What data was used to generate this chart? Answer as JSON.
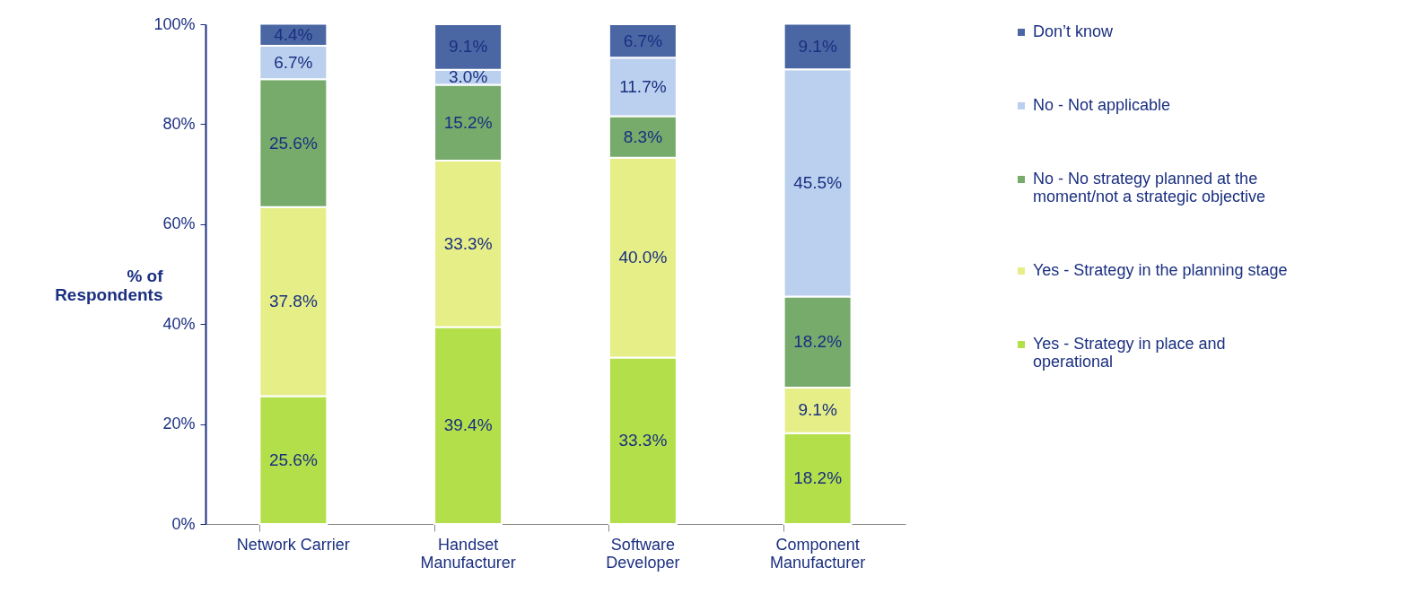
{
  "chart_data": {
    "type": "bar",
    "stacked": true,
    "ylabel": "% of Respondents",
    "categories": [
      "Network Carrier",
      "Handset Manufacturer",
      "Software Developer",
      "Component Manufacturer"
    ],
    "ylim": [
      0,
      100
    ],
    "yticks": [
      {
        "value": 0,
        "label": "0%"
      },
      {
        "value": 20,
        "label": "20%"
      },
      {
        "value": 40,
        "label": "40%"
      },
      {
        "value": 60,
        "label": "60%"
      },
      {
        "value": 80,
        "label": "80%"
      },
      {
        "value": 100,
        "label": "100%"
      }
    ],
    "legend": "right",
    "grid": false,
    "series": [
      {
        "name": "Yes - Strategy in place and operational",
        "color": "#b3df4b",
        "values": [
          25.6,
          39.4,
          33.3,
          18.2
        ],
        "value_labels": [
          "25.6%",
          "39.4%",
          "33.3%",
          "18.2%"
        ]
      },
      {
        "name": "Yes - Strategy in the planning stage",
        "color": "#e6ee88",
        "values": [
          37.8,
          33.3,
          40.0,
          9.1
        ],
        "value_labels": [
          "37.8%",
          "33.3%",
          "40.0%",
          "9.1%"
        ]
      },
      {
        "name": "No - No strategy planned at the moment/not a strategic objective",
        "color": "#76ab6c",
        "values": [
          25.6,
          15.2,
          8.3,
          18.2
        ],
        "value_labels": [
          "25.6%",
          "15.2%",
          "8.3%",
          "18.2%"
        ]
      },
      {
        "name": "No - Not applicable",
        "color": "#bad0ee",
        "values": [
          6.7,
          3.0,
          11.7,
          45.5
        ],
        "value_labels": [
          "6.7%",
          "3.0%",
          "11.7%",
          "45.5%"
        ]
      },
      {
        "name": "Don’t know",
        "color": "#4a67a4",
        "values": [
          4.4,
          9.1,
          6.7,
          9.1
        ],
        "value_labels": [
          "4.4%",
          "9.1%",
          "6.7%",
          "9.1%"
        ]
      }
    ]
  }
}
